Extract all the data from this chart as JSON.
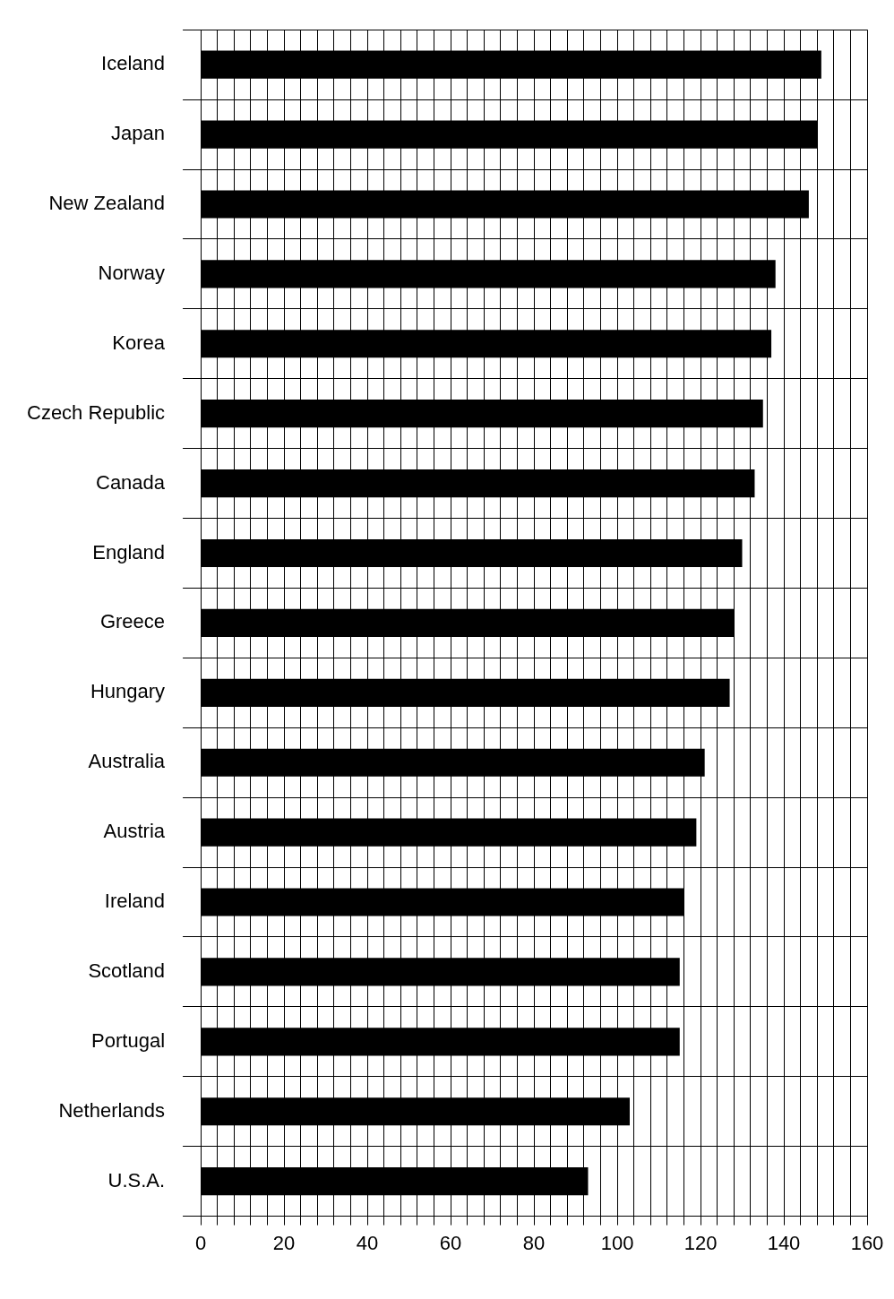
{
  "chart_data": {
    "type": "bar",
    "orientation": "horizontal",
    "categories": [
      "Iceland",
      "Japan",
      "New Zealand",
      "Norway",
      "Korea",
      "Czech Republic",
      "Canada",
      "England",
      "Greece",
      "Hungary",
      "Australia",
      "Austria",
      "Ireland",
      "Scotland",
      "Portugal",
      "Netherlands",
      "U.S.A."
    ],
    "values": [
      149,
      148,
      146,
      138,
      137,
      135,
      133,
      130,
      128,
      127,
      121,
      119,
      116,
      115,
      115,
      103,
      93
    ],
    "color": "#000000",
    "xlim": [
      0,
      160
    ],
    "xticks": [
      0,
      {
        "value": 4,
        "label": null
      },
      {
        "value": 8,
        "label": null
      },
      {
        "value": 12,
        "label": null
      },
      {
        "value": 16,
        "label": null
      },
      20,
      {
        "value": 24,
        "label": null
      },
      {
        "value": 28,
        "label": null
      },
      {
        "value": 32,
        "label": null
      },
      {
        "value": 36,
        "label": null
      },
      40,
      {
        "value": 44,
        "label": null
      },
      {
        "value": 48,
        "label": null
      },
      {
        "value": 52,
        "label": null
      },
      {
        "value": 56,
        "label": null
      },
      60,
      {
        "value": 64,
        "label": null
      },
      {
        "value": 68,
        "label": null
      },
      {
        "value": 72,
        "label": null
      },
      {
        "value": 76,
        "label": null
      },
      80,
      {
        "value": 84,
        "label": null
      },
      {
        "value": 88,
        "label": null
      },
      {
        "value": 92,
        "label": null
      },
      {
        "value": 96,
        "label": null
      },
      100,
      {
        "value": 104,
        "label": null
      },
      {
        "value": 108,
        "label": null
      },
      {
        "value": 112,
        "label": null
      },
      {
        "value": 116,
        "label": null
      },
      120,
      {
        "value": 124,
        "label": null
      },
      {
        "value": 128,
        "label": null
      },
      {
        "value": 132,
        "label": null
      },
      {
        "value": 136,
        "label": null
      },
      140,
      {
        "value": 144,
        "label": null
      },
      {
        "value": 148,
        "label": null
      },
      {
        "value": 152,
        "label": null
      },
      {
        "value": 156,
        "label": null
      },
      160
    ],
    "grid": true,
    "legend": false
  }
}
